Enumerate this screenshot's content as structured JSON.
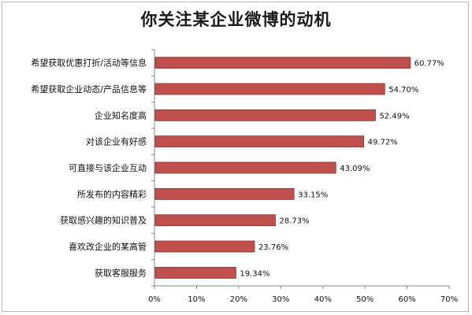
{
  "chart_data": {
    "type": "bar",
    "orientation": "horizontal",
    "title": "你关注某企业微博的动机",
    "categories": [
      "希望获取优惠打折/活动等信息",
      "希望获取企业动态/产品信息等",
      "企业知名度高",
      "对该企业有好感",
      "可直接与该企业互动",
      "所发布的内容精彩",
      "获取感兴趣的知识普及",
      "喜欢改企业的某高管",
      "获取客服服务"
    ],
    "values": [
      60.77,
      54.7,
      52.49,
      49.72,
      43.09,
      33.15,
      28.73,
      23.76,
      19.34
    ],
    "value_labels": [
      "60.77%",
      "54.70%",
      "52.49%",
      "49.72%",
      "43.09%",
      "33.15%",
      "28.73%",
      "23.76%",
      "19.34%"
    ],
    "xlim": [
      0,
      70
    ],
    "xticks": [
      0,
      10,
      20,
      30,
      40,
      50,
      60,
      70
    ],
    "xtick_labels": [
      "0%",
      "10%",
      "20%",
      "30%",
      "40%",
      "50%",
      "60%",
      "70%"
    ],
    "xlabel": "",
    "ylabel": "",
    "grid": false,
    "legend": "none",
    "bar_color": "#c0504d",
    "bar_edge_color": "#8c2f2c"
  }
}
